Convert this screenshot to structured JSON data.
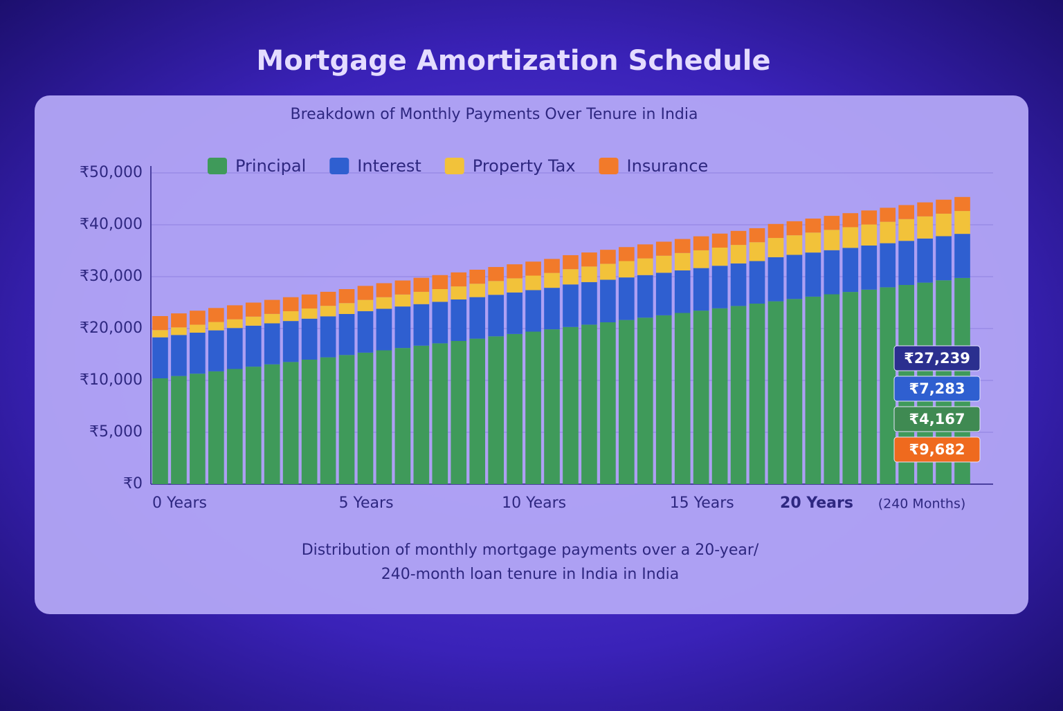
{
  "chart_data": {
    "type": "stacked_bar",
    "title": "Mortgage Amortization Schedule",
    "subtitle": "Breakdown of Monthly Payments Over Tenure in India",
    "caption": [
      "Distribution of monthly mortgage payments over a 20-year/",
      "240-month loan tenure in India in India"
    ],
    "categories": [
      "0 Years",
      null,
      null,
      null,
      null,
      null,
      null,
      null,
      null,
      null,
      "5 Years",
      null,
      null,
      null,
      null,
      null,
      null,
      null,
      null,
      "10 Years",
      null,
      null,
      null,
      null,
      null,
      null,
      null,
      null,
      "15 Years",
      null,
      null,
      null,
      null,
      null,
      null,
      null,
      null,
      "20 Years",
      null,
      null,
      null,
      null,
      null,
      null
    ],
    "x_axis_note": "(240 Months)",
    "ylim": [
      0,
      50000
    ],
    "yticks": [
      {
        "value": 0,
        "label": "₹0"
      },
      {
        "value": 5000,
        "label": "₹5,000"
      },
      {
        "value": 10000,
        "label": "₹10,000"
      },
      {
        "value": 20000,
        "label": "₹20,000"
      },
      {
        "value": 30000,
        "label": "₹30,000"
      },
      {
        "value": 40000,
        "label": "₹40,000"
      },
      {
        "value": 50000,
        "label": "₹50,000"
      }
    ],
    "grid": true,
    "series": [
      {
        "name": "Principal",
        "color": "#3f9a5a",
        "values": [
          10400,
          10850,
          11300,
          11750,
          12200,
          12650,
          13100,
          13550,
          14000,
          14450,
          14900,
          15350,
          15800,
          16250,
          16700,
          17150,
          17600,
          18050,
          18500,
          18950,
          19400,
          19850,
          20300,
          20750,
          21200,
          21650,
          22100,
          22550,
          23000,
          23450,
          23900,
          24350,
          24800,
          25250,
          25700,
          26150,
          26600,
          27050,
          27500,
          27950,
          28400,
          28850,
          29300,
          29750
        ]
      },
      {
        "name": "Interest",
        "color": "#2f5fd0",
        "values": [
          7900,
          7900,
          7900,
          7900,
          7900,
          7900,
          7900,
          7900,
          7900,
          7900,
          7900,
          8000,
          8000,
          8000,
          8000,
          8000,
          8000,
          8000,
          8000,
          8000,
          8000,
          8000,
          8200,
          8200,
          8200,
          8200,
          8200,
          8200,
          8200,
          8200,
          8200,
          8200,
          8200,
          8500,
          8500,
          8500,
          8500,
          8500,
          8500,
          8500,
          8500,
          8500,
          8500,
          8500
        ]
      },
      {
        "name": "Property Tax",
        "color": "#f2c23a",
        "values": [
          1400,
          1470,
          1540,
          1610,
          1680,
          1750,
          1820,
          1890,
          1960,
          2030,
          2100,
          2170,
          2240,
          2310,
          2380,
          2450,
          2520,
          2590,
          2660,
          2730,
          2800,
          2870,
          2940,
          3010,
          3080,
          3150,
          3220,
          3290,
          3360,
          3430,
          3500,
          3570,
          3640,
          3710,
          3780,
          3850,
          3920,
          3990,
          4060,
          4130,
          4200,
          4270,
          4340,
          4410
        ]
      },
      {
        "name": "Insurance",
        "color": "#f27a2a",
        "values": [
          2700,
          2700,
          2700,
          2700,
          2700,
          2700,
          2700,
          2700,
          2700,
          2700,
          2700,
          2700,
          2700,
          2700,
          2700,
          2700,
          2700,
          2700,
          2700,
          2700,
          2700,
          2700,
          2700,
          2700,
          2700,
          2700,
          2700,
          2700,
          2700,
          2700,
          2700,
          2700,
          2700,
          2700,
          2700,
          2700,
          2700,
          2700,
          2700,
          2700,
          2700,
          2700,
          2700,
          2700
        ]
      }
    ],
    "annotations": [
      {
        "text": "₹27,239",
        "color": "#2b2f8f"
      },
      {
        "text": "₹7,283",
        "color": "#2f5fd0"
      },
      {
        "text": "₹4,167",
        "color": "#3f8a52"
      },
      {
        "text": "₹9,682",
        "color": "#ef6a1e"
      }
    ]
  }
}
